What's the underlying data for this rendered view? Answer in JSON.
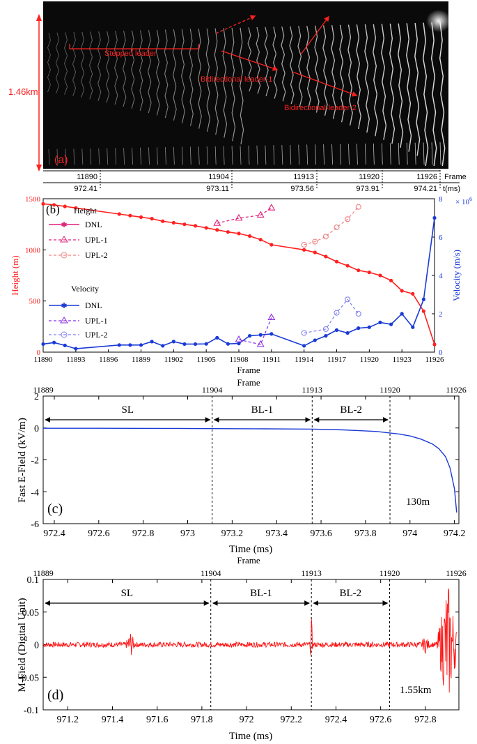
{
  "chart_data": [
    {
      "panel": "(a)",
      "type": "image",
      "scale_label": "1.46km",
      "annotations": [
        "Stepped leader",
        "Bidirectional leader-1",
        "Bidirectional-leader-2"
      ],
      "frame_ticks": [
        "11890",
        "11904",
        "11913",
        "11920",
        "11926"
      ],
      "frame_label": "Frame",
      "time_ticks": [
        "972.41",
        "973.11",
        "973.56",
        "973.91",
        "974.21"
      ],
      "time_label": "t(ms)",
      "colors": {
        "annotation": "#ff2020",
        "background": "#0a0a0a"
      }
    },
    {
      "panel": "(b)",
      "type": "line",
      "xlabel": "Frame",
      "xlabel_extra": "Frame",
      "ylabel": "Height (m)",
      "y2label": "Velocity (m/s)",
      "y2_exponent": "× 10^6",
      "xlim": [
        11890,
        11926
      ],
      "ylim": [
        0,
        1500
      ],
      "y2lim": [
        0,
        8
      ],
      "xticks": [
        11890,
        11893,
        11896,
        11899,
        11902,
        11905,
        11908,
        11911,
        11914,
        11917,
        11920,
        11923,
        11926
      ],
      "yticks": [
        0,
        500,
        1000,
        1500
      ],
      "y2ticks": [
        0,
        2,
        4,
        6,
        8
      ],
      "legend_height_title": "Height",
      "legend_velocity_title": "Velocity",
      "series": [
        {
          "name": "DNL",
          "group": "height",
          "axis": "left",
          "color": "#ff2020",
          "marker": "dot",
          "dash": false,
          "x": [
            11890,
            11891,
            11892,
            11893,
            11897,
            11898,
            11899,
            11900,
            11901,
            11902,
            11903,
            11904,
            11905,
            11906,
            11907,
            11908,
            11909,
            11910,
            11911,
            11914,
            11915,
            11916,
            11917,
            11918,
            11919,
            11920,
            11921,
            11922,
            11923,
            11924,
            11925,
            11926
          ],
          "y": [
            1450,
            1440,
            1425,
            1410,
            1350,
            1335,
            1320,
            1305,
            1280,
            1265,
            1250,
            1235,
            1215,
            1195,
            1175,
            1160,
            1135,
            1100,
            1050,
            1000,
            975,
            935,
            885,
            845,
            800,
            780,
            750,
            700,
            600,
            570,
            400,
            75
          ]
        },
        {
          "name": "UPL-1",
          "group": "height",
          "axis": "left",
          "color": "#e0207a",
          "marker": "triangle",
          "dash": true,
          "x": [
            11906,
            11908,
            11910,
            11911
          ],
          "y": [
            1260,
            1310,
            1340,
            1410
          ]
        },
        {
          "name": "UPL-2",
          "group": "height",
          "axis": "left",
          "color": "#f08080",
          "marker": "circle",
          "dash": true,
          "x": [
            11914,
            11915,
            11916,
            11917,
            11918,
            11919
          ],
          "y": [
            1050,
            1080,
            1130,
            1220,
            1300,
            1420
          ]
        },
        {
          "name": "DNL",
          "group": "velocity",
          "axis": "right",
          "color": "#1a3ad6",
          "marker": "dot",
          "dash": false,
          "x": [
            11890,
            11891,
            11892,
            11893,
            11897,
            11898,
            11899,
            11900,
            11901,
            11902,
            11903,
            11904,
            11905,
            11906,
            11907,
            11908,
            11909,
            11910,
            11911,
            11914,
            11915,
            11916,
            11917,
            11918,
            11919,
            11920,
            11921,
            11922,
            11923,
            11924,
            11925,
            11926
          ],
          "y": [
            0.42,
            0.5,
            0.35,
            0.18,
            0.37,
            0.37,
            0.37,
            0.55,
            0.33,
            0.55,
            0.42,
            0.42,
            0.43,
            0.75,
            0.43,
            0.45,
            0.85,
            0.9,
            0.95,
            0.33,
            0.62,
            0.85,
            1.15,
            1.0,
            1.25,
            1.3,
            1.55,
            1.45,
            2.0,
            1.3,
            2.75,
            7.0
          ]
        },
        {
          "name": "UPL-1",
          "group": "velocity",
          "axis": "right",
          "color": "#8a2be2",
          "marker": "triangle",
          "dash": true,
          "x": [
            11908,
            11910,
            11911
          ],
          "y": [
            0.65,
            0.4,
            1.8
          ]
        },
        {
          "name": "UPL-2",
          "group": "velocity",
          "axis": "right",
          "color": "#8080f0",
          "marker": "circle",
          "dash": true,
          "x": [
            11914,
            11916,
            11917,
            11918,
            11919
          ],
          "y": [
            1.0,
            1.2,
            2.05,
            2.75,
            2.0
          ]
        }
      ]
    },
    {
      "panel": "(c)",
      "type": "line",
      "xlabel": "Time (ms)",
      "ylabel": "Fast E-Field (kV/m)",
      "xlim": [
        972.35,
        974.22
      ],
      "ylim": [
        -6,
        2
      ],
      "xticks": [
        972.4,
        972.6,
        972.8,
        973,
        973.2,
        973.4,
        973.6,
        973.8,
        974,
        974.2
      ],
      "yticks": [
        -6,
        -4,
        -2,
        0,
        2
      ],
      "top_axis_frames": [
        {
          "label": "11889",
          "at": 972.35
        },
        {
          "label": "11904",
          "at": 973.11
        },
        {
          "label": "11913",
          "at": 973.56
        },
        {
          "label": "11920",
          "at": 973.91
        },
        {
          "label": "11926",
          "at": 974.21
        }
      ],
      "dashed_lines": [
        973.11,
        973.56,
        973.91
      ],
      "intervals": [
        {
          "label": "SL",
          "from": 972.35,
          "to": 973.11
        },
        {
          "label": "BL-1",
          "from": 973.11,
          "to": 973.56
        },
        {
          "label": "BL-2",
          "from": 973.56,
          "to": 973.91
        }
      ],
      "distance_label": "130m",
      "series": [
        {
          "name": "",
          "color": "#1a3ad6",
          "x": [
            972.35,
            972.6,
            972.9,
            973.1,
            973.3,
            973.56,
            973.7,
            973.85,
            973.95,
            974.0,
            974.05,
            974.1,
            974.13,
            974.16,
            974.18,
            974.2,
            974.21
          ],
          "y": [
            -0.02,
            -0.02,
            -0.03,
            -0.04,
            -0.05,
            -0.07,
            -0.12,
            -0.22,
            -0.38,
            -0.5,
            -0.7,
            -1.0,
            -1.3,
            -1.8,
            -2.5,
            -3.8,
            -5.3
          ]
        }
      ]
    },
    {
      "panel": "(d)",
      "type": "line",
      "title_above": "Frame",
      "xlabel": "Time (ms)",
      "ylabel": "M-Field (Digital Unit)",
      "xlim": [
        971.09,
        972.95
      ],
      "ylim": [
        -0.1,
        0.1
      ],
      "xticks": [
        971.2,
        971.4,
        971.6,
        971.8,
        972,
        972.2,
        972.4,
        972.6,
        972.8
      ],
      "yticks": [
        -0.1,
        -0.05,
        0,
        0.05,
        0.1
      ],
      "top_axis_frames": [
        {
          "label": "11889",
          "at": 971.09
        },
        {
          "label": "11904",
          "at": 971.84
        },
        {
          "label": "11913",
          "at": 972.29
        },
        {
          "label": "11920",
          "at": 972.64
        },
        {
          "label": "11926",
          "at": 972.94
        }
      ],
      "dashed_lines": [
        971.84,
        972.29,
        972.64
      ],
      "intervals": [
        {
          "label": "SL",
          "from": 971.09,
          "to": 971.84
        },
        {
          "label": "BL-1",
          "from": 971.84,
          "to": 972.29
        },
        {
          "label": "BL-2",
          "from": 972.29,
          "to": 972.64
        }
      ],
      "distance_label": "1.55km",
      "series": [
        {
          "name": "",
          "color": "#ff1010",
          "noise": 0.004,
          "bursts": [
            {
              "at": 971.48,
              "width": 0.02,
              "amp": 0.018
            },
            {
              "at": 972.29,
              "width": 0.006,
              "amp": 0.04
            },
            {
              "at": 972.8,
              "width": 0.02,
              "amp": 0.01
            },
            {
              "at": 972.9,
              "width": 0.05,
              "amp": 0.1
            }
          ]
        }
      ]
    }
  ]
}
